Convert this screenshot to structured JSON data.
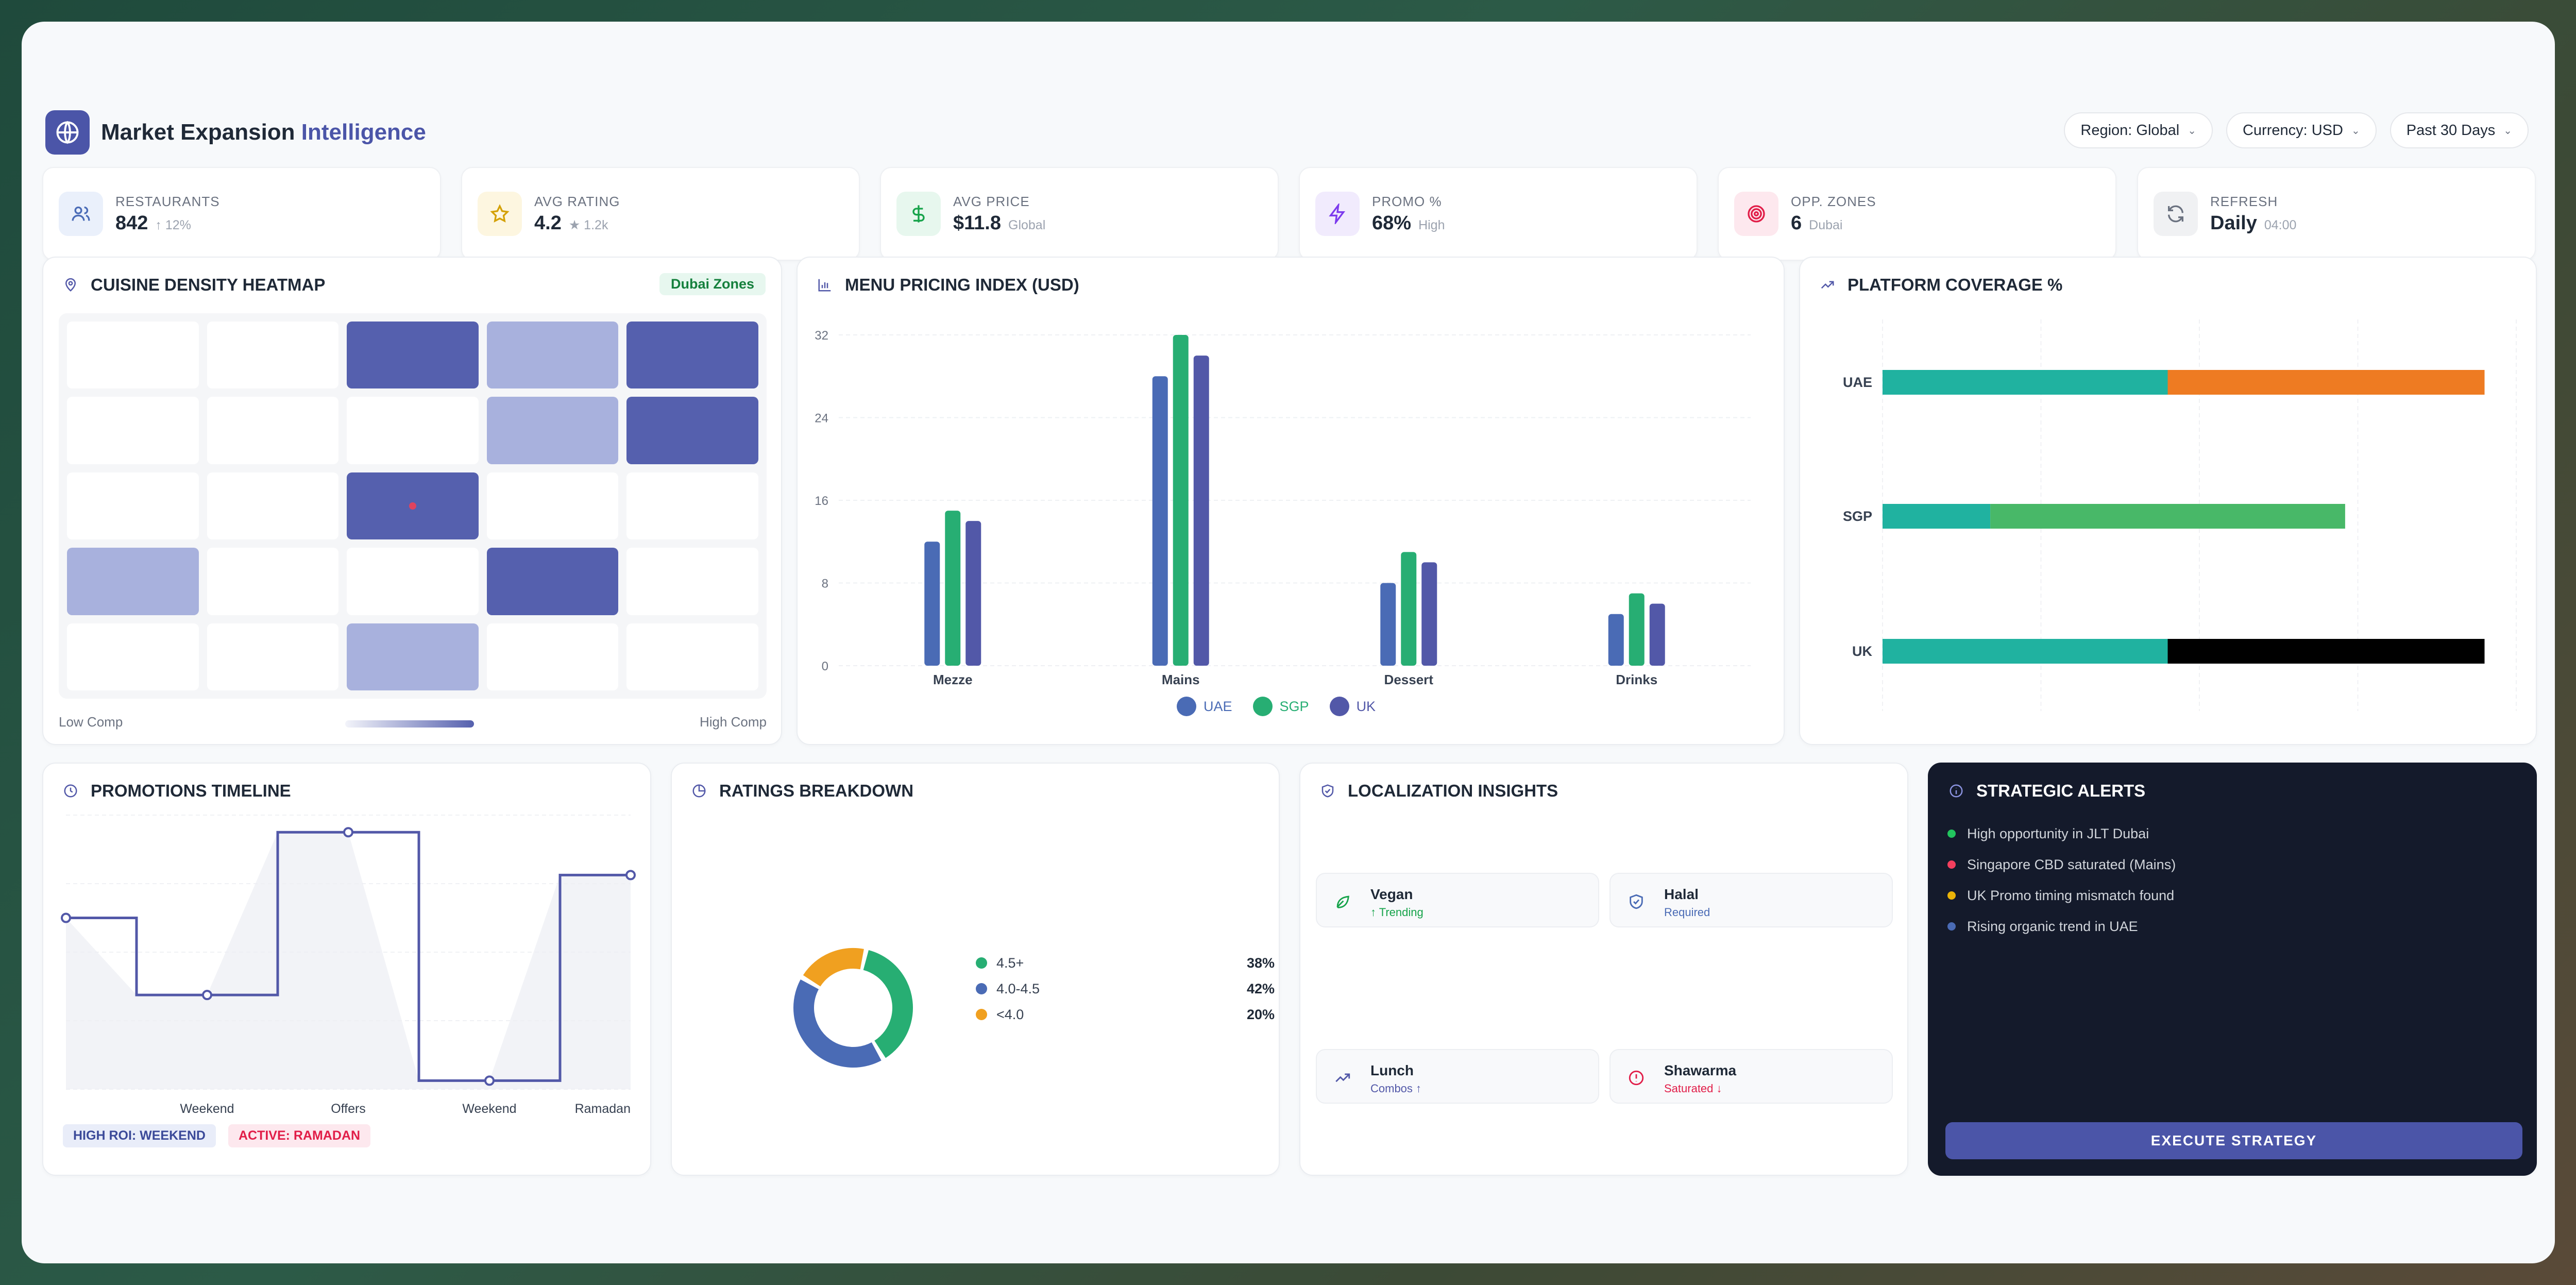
{
  "app": {
    "brand_main": "Market Expansion",
    "brand_accent": "Intelligence",
    "filters": [
      "Region: Global",
      "Currency: USD",
      "Past 30 Days"
    ]
  },
  "kpis": [
    {
      "icon": "users-icon",
      "label": "RESTAURANTS",
      "value": "842",
      "sub": "↑ 12%",
      "color": "#4b6cb7",
      "bg": "#eaf0fb"
    },
    {
      "icon": "star-icon",
      "label": "AVG RATING",
      "value": "4.2",
      "sub": "★ 1.2k",
      "color": "#d4a106",
      "bg": "#fdf6e0"
    },
    {
      "icon": "dollar-icon",
      "label": "AVG PRICE",
      "value": "$11.8",
      "sub": "Global",
      "color": "#16a34a",
      "bg": "#e7f7ee"
    },
    {
      "icon": "bolt-icon",
      "label": "PROMO %",
      "value": "68%",
      "sub": "High",
      "color": "#7c3aed",
      "bg": "#f1ebfd"
    },
    {
      "icon": "target-icon",
      "label": "OPP. ZONES",
      "value": "6",
      "sub": "Dubai",
      "color": "#e11d48",
      "bg": "#fde8ee"
    },
    {
      "icon": "refresh-icon",
      "label": "REFRESH",
      "value": "Daily",
      "sub": "04:00",
      "color": "#6b7280",
      "bg": "#f0f1f3"
    }
  ],
  "heatmap": {
    "title": "CUISINE DENSITY HEATMAP",
    "badge": "Dubai Zones",
    "low_label": "Low Comp",
    "high_label": "High Comp",
    "levels": [
      [
        0,
        0,
        2,
        1,
        2
      ],
      [
        0,
        0,
        0,
        1,
        2
      ],
      [
        0,
        0,
        2,
        0,
        0
      ],
      [
        1,
        0,
        0,
        2,
        0
      ],
      [
        0,
        0,
        1,
        0,
        0
      ]
    ],
    "marker": [
      2,
      2
    ]
  },
  "pricing": {
    "title": "MENU PRICING INDEX (USD)",
    "chart_data": {
      "type": "bar",
      "title": "MENU PRICING INDEX (USD)",
      "categories": [
        "Mezze",
        "Mains",
        "Dessert",
        "Drinks"
      ],
      "series": [
        {
          "name": "UAE",
          "values": [
            12,
            28,
            8,
            5
          ],
          "color": "#4a6bb5"
        },
        {
          "name": "SGP",
          "values": [
            15,
            32,
            11,
            7
          ],
          "color": "#27ae73"
        },
        {
          "name": "UK",
          "values": [
            14,
            30,
            10,
            6
          ],
          "color": "#5258a8"
        }
      ],
      "ylim": [
        0,
        32
      ],
      "yticks": [
        "0",
        "8",
        "16",
        "24",
        "32"
      ],
      "grid": true,
      "legend": "bottom-center"
    }
  },
  "coverage": {
    "title": "PLATFORM COVERAGE %",
    "chart_data": {
      "type": "bar",
      "orientation": "horizontal-stacked",
      "categories": [
        "UAE",
        "SGP",
        "UK"
      ],
      "stacks": [
        [
          {
            "value": 45,
            "color": "#20b2a0"
          },
          {
            "value": 50,
            "color": "#ee7b22"
          }
        ],
        [
          {
            "value": 17,
            "color": "#20b2a0"
          },
          {
            "value": 56,
            "color": "#48b868"
          }
        ],
        [
          {
            "value": 45,
            "color": "#20b2a0"
          },
          {
            "value": 50,
            "color": "#000000"
          }
        ]
      ],
      "xlim": [
        0,
        100
      ],
      "grid": true
    }
  },
  "promotions": {
    "title": "PROMOTIONS TIMELINE",
    "chart_data": {
      "type": "line",
      "step": true,
      "x": [
        "",
        "",
        "Weekend",
        "",
        "Offers",
        "",
        "Weekend",
        "",
        "Ramadan"
      ],
      "xlabels": [
        "Weekend",
        "Offers",
        "Weekend",
        "Ramadan"
      ],
      "values": [
        2.0,
        1.1,
        1.1,
        3.0,
        3.0,
        0.1,
        0.1,
        2.5,
        2.5
      ],
      "markers": [
        [
          0,
          2.0
        ],
        [
          2,
          1.1
        ],
        [
          4,
          3.0
        ],
        [
          6,
          0.1
        ],
        [
          8,
          2.5
        ]
      ],
      "ylim": [
        0,
        3.2
      ]
    },
    "tags": [
      {
        "text": "HIGH ROI: WEEKEND",
        "fg": "#3b4a99",
        "bg": "#e9edf9"
      },
      {
        "text": "ACTIVE: RAMADAN",
        "fg": "#e11d48",
        "bg": "#fde8ee"
      }
    ]
  },
  "ratings": {
    "title": "RATINGS BREAKDOWN",
    "chart_data": {
      "type": "pie",
      "donut": true,
      "labels": [
        "4.5+",
        "4.0-4.5",
        "<4.0"
      ],
      "values": [
        38,
        42,
        20
      ],
      "colors": [
        "#27ae73",
        "#4a6bb5",
        "#f0a020"
      ]
    },
    "legend": [
      {
        "label": "4.5+",
        "pct": "38%",
        "color": "#27ae73"
      },
      {
        "label": "4.0-4.5",
        "pct": "42%",
        "color": "#4a6bb5"
      },
      {
        "label": "<4.0",
        "pct": "20%",
        "color": "#f0a020"
      }
    ]
  },
  "localization": {
    "title": "LOCALIZATION INSIGHTS",
    "tiles": [
      {
        "icon": "leaf-icon",
        "title": "Vegan",
        "sub": "↑ Trending",
        "sub_color": "#16a34a",
        "icon_color": "#16a34a"
      },
      {
        "icon": "shield-check-icon",
        "title": "Halal",
        "sub": "Required",
        "sub_color": "#4a6bb5",
        "icon_color": "#4a6bb5"
      },
      {
        "icon": "trend-up-icon",
        "title": "Lunch",
        "sub": "Combos ↑",
        "sub_color": "#5258a8",
        "icon_color": "#5258a8"
      },
      {
        "icon": "alert-circle-icon",
        "title": "Shawarma",
        "sub": "Saturated ↓",
        "sub_color": "#e11d48",
        "icon_color": "#e11d48"
      }
    ]
  },
  "alerts": {
    "title": "STRATEGIC ALERTS",
    "items": [
      {
        "text": "High opportunity in JLT Dubai",
        "color": "#22c55e"
      },
      {
        "text": "Singapore CBD saturated (Mains)",
        "color": "#f43f5e"
      },
      {
        "text": "UK Promo timing mismatch found",
        "color": "#eab308"
      },
      {
        "text": "Rising organic trend in UAE",
        "color": "#4a6bb5"
      }
    ],
    "button": "EXECUTE STRATEGY"
  }
}
